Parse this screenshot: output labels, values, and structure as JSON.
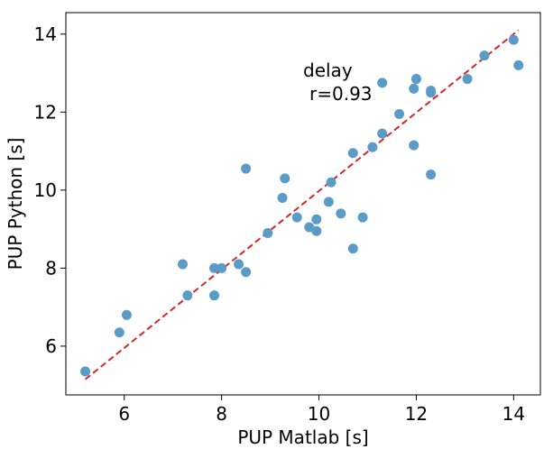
{
  "chart_data": {
    "type": "scatter",
    "xlabel": "PUP Matlab [s]",
    "ylabel": "PUP Python [s]",
    "xlim": [
      4.8,
      14.55
    ],
    "ylim": [
      4.75,
      14.55
    ],
    "xticks": [
      6,
      8,
      10,
      12,
      14
    ],
    "yticks": [
      6,
      8,
      10,
      12,
      14
    ],
    "grid": false,
    "annotation": {
      "line1": "delay",
      "line2": "r=0.93"
    },
    "colors": {
      "points": "#5b9bc8",
      "fit_line": "#d62728"
    },
    "fit_line": {
      "x": [
        5.2,
        14.1
      ],
      "y": [
        5.15,
        14.1
      ]
    },
    "points": [
      {
        "x": 5.2,
        "y": 5.35
      },
      {
        "x": 5.9,
        "y": 6.35
      },
      {
        "x": 6.05,
        "y": 6.8
      },
      {
        "x": 7.2,
        "y": 8.1
      },
      {
        "x": 7.3,
        "y": 7.3
      },
      {
        "x": 7.85,
        "y": 7.3
      },
      {
        "x": 7.85,
        "y": 8.0
      },
      {
        "x": 8.0,
        "y": 8.0
      },
      {
        "x": 8.35,
        "y": 8.1
      },
      {
        "x": 8.5,
        "y": 7.9
      },
      {
        "x": 8.5,
        "y": 10.55
      },
      {
        "x": 8.95,
        "y": 8.9
      },
      {
        "x": 9.25,
        "y": 9.8
      },
      {
        "x": 9.3,
        "y": 10.3
      },
      {
        "x": 9.55,
        "y": 9.3
      },
      {
        "x": 9.8,
        "y": 9.05
      },
      {
        "x": 9.95,
        "y": 8.95
      },
      {
        "x": 9.95,
        "y": 9.25
      },
      {
        "x": 10.2,
        "y": 9.7
      },
      {
        "x": 10.25,
        "y": 10.2
      },
      {
        "x": 10.45,
        "y": 9.4
      },
      {
        "x": 10.7,
        "y": 10.95
      },
      {
        "x": 10.7,
        "y": 8.5
      },
      {
        "x": 10.9,
        "y": 9.3
      },
      {
        "x": 11.1,
        "y": 11.1
      },
      {
        "x": 11.3,
        "y": 11.45
      },
      {
        "x": 11.3,
        "y": 12.75
      },
      {
        "x": 11.65,
        "y": 11.95
      },
      {
        "x": 11.95,
        "y": 11.15
      },
      {
        "x": 11.95,
        "y": 12.6
      },
      {
        "x": 12.0,
        "y": 12.85
      },
      {
        "x": 12.3,
        "y": 12.55
      },
      {
        "x": 12.3,
        "y": 12.5
      },
      {
        "x": 12.3,
        "y": 10.4
      },
      {
        "x": 13.05,
        "y": 12.85
      },
      {
        "x": 13.4,
        "y": 13.45
      },
      {
        "x": 14.0,
        "y": 13.85
      },
      {
        "x": 14.1,
        "y": 13.2
      }
    ]
  }
}
